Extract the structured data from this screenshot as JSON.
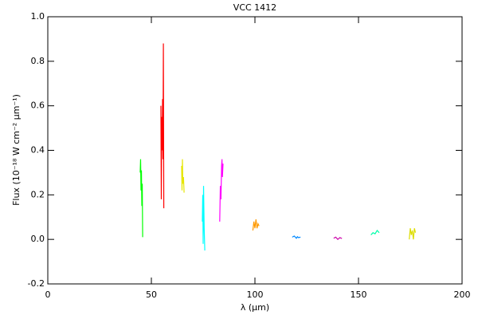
{
  "chart_data": {
    "type": "line",
    "title": "VCC 1412",
    "xlabel": "λ (μm)",
    "ylabel": "Flux (10⁻¹⁸ W cm⁻² μm⁻¹)",
    "xlim": [
      0,
      200
    ],
    "xticks": [
      0,
      50,
      100,
      150,
      200
    ],
    "ylim": [
      -0.2,
      1.0
    ],
    "yticks": [
      -0.2,
      {
        "value": 0,
        "label": "0.0"
      },
      0.2,
      0.4,
      0.6,
      0.8,
      {
        "value": 1,
        "label": "1.0"
      }
    ],
    "series": [
      {
        "color": "#00ff00",
        "x": [
          44.6,
          44.8,
          45.0,
          45.2,
          45.4,
          45.6,
          45.8
        ],
        "values": [
          0.3,
          0.36,
          0.22,
          0.31,
          0.15,
          0.25,
          0.01
        ]
      },
      {
        "color": "#ff0000",
        "x": [
          54.6,
          54.8,
          55.0,
          55.2,
          55.4,
          55.6,
          55.8,
          56.0
        ],
        "values": [
          0.6,
          0.18,
          0.55,
          0.4,
          0.63,
          0.36,
          0.88,
          0.14
        ]
      },
      {
        "color": "#e6e600",
        "x": [
          64.6,
          64.8,
          65.0,
          65.2,
          65.5,
          65.8
        ],
        "values": [
          0.33,
          0.22,
          0.36,
          0.25,
          0.28,
          0.21
        ]
      },
      {
        "color": "#00ffff",
        "x": [
          74.6,
          74.8,
          75.0,
          75.2,
          75.5,
          75.8
        ],
        "values": [
          0.08,
          0.2,
          -0.02,
          0.24,
          0.05,
          -0.05
        ]
      },
      {
        "color": "#ff00ff",
        "x": [
          83.0,
          83.3,
          83.6,
          83.9,
          84.1,
          84.3,
          84.6
        ],
        "values": [
          0.08,
          0.24,
          0.18,
          0.33,
          0.36,
          0.28,
          0.34
        ]
      },
      {
        "color": "#ff9900",
        "x": [
          99.0,
          99.5,
          100.0,
          100.5,
          101.0,
          101.5,
          102.0
        ],
        "values": [
          0.04,
          0.08,
          0.05,
          0.09,
          0.05,
          0.07,
          0.06
        ]
      },
      {
        "color": "#0088ff",
        "x": [
          118.0,
          119.0,
          120.0,
          120.5,
          121.0,
          122.0
        ],
        "values": [
          0.01,
          0.015,
          0.005,
          0.012,
          0.008,
          0.01
        ]
      },
      {
        "color": "#cc00aa",
        "x": [
          138.0,
          139.0,
          140.0,
          141.0,
          142.0
        ],
        "values": [
          0.005,
          0.01,
          0.0,
          0.008,
          0.004
        ]
      },
      {
        "color": "#00ffaa",
        "x": [
          156.0,
          157.0,
          158.0,
          159.0,
          160.0
        ],
        "values": [
          0.02,
          0.03,
          0.025,
          0.04,
          0.03
        ]
      },
      {
        "color": "#dddd00",
        "x": [
          174.5,
          175.0,
          175.5,
          176.0,
          176.5,
          177.0,
          177.5
        ],
        "values": [
          0.0,
          0.05,
          0.02,
          0.04,
          0.0,
          0.05,
          0.03
        ]
      }
    ]
  }
}
